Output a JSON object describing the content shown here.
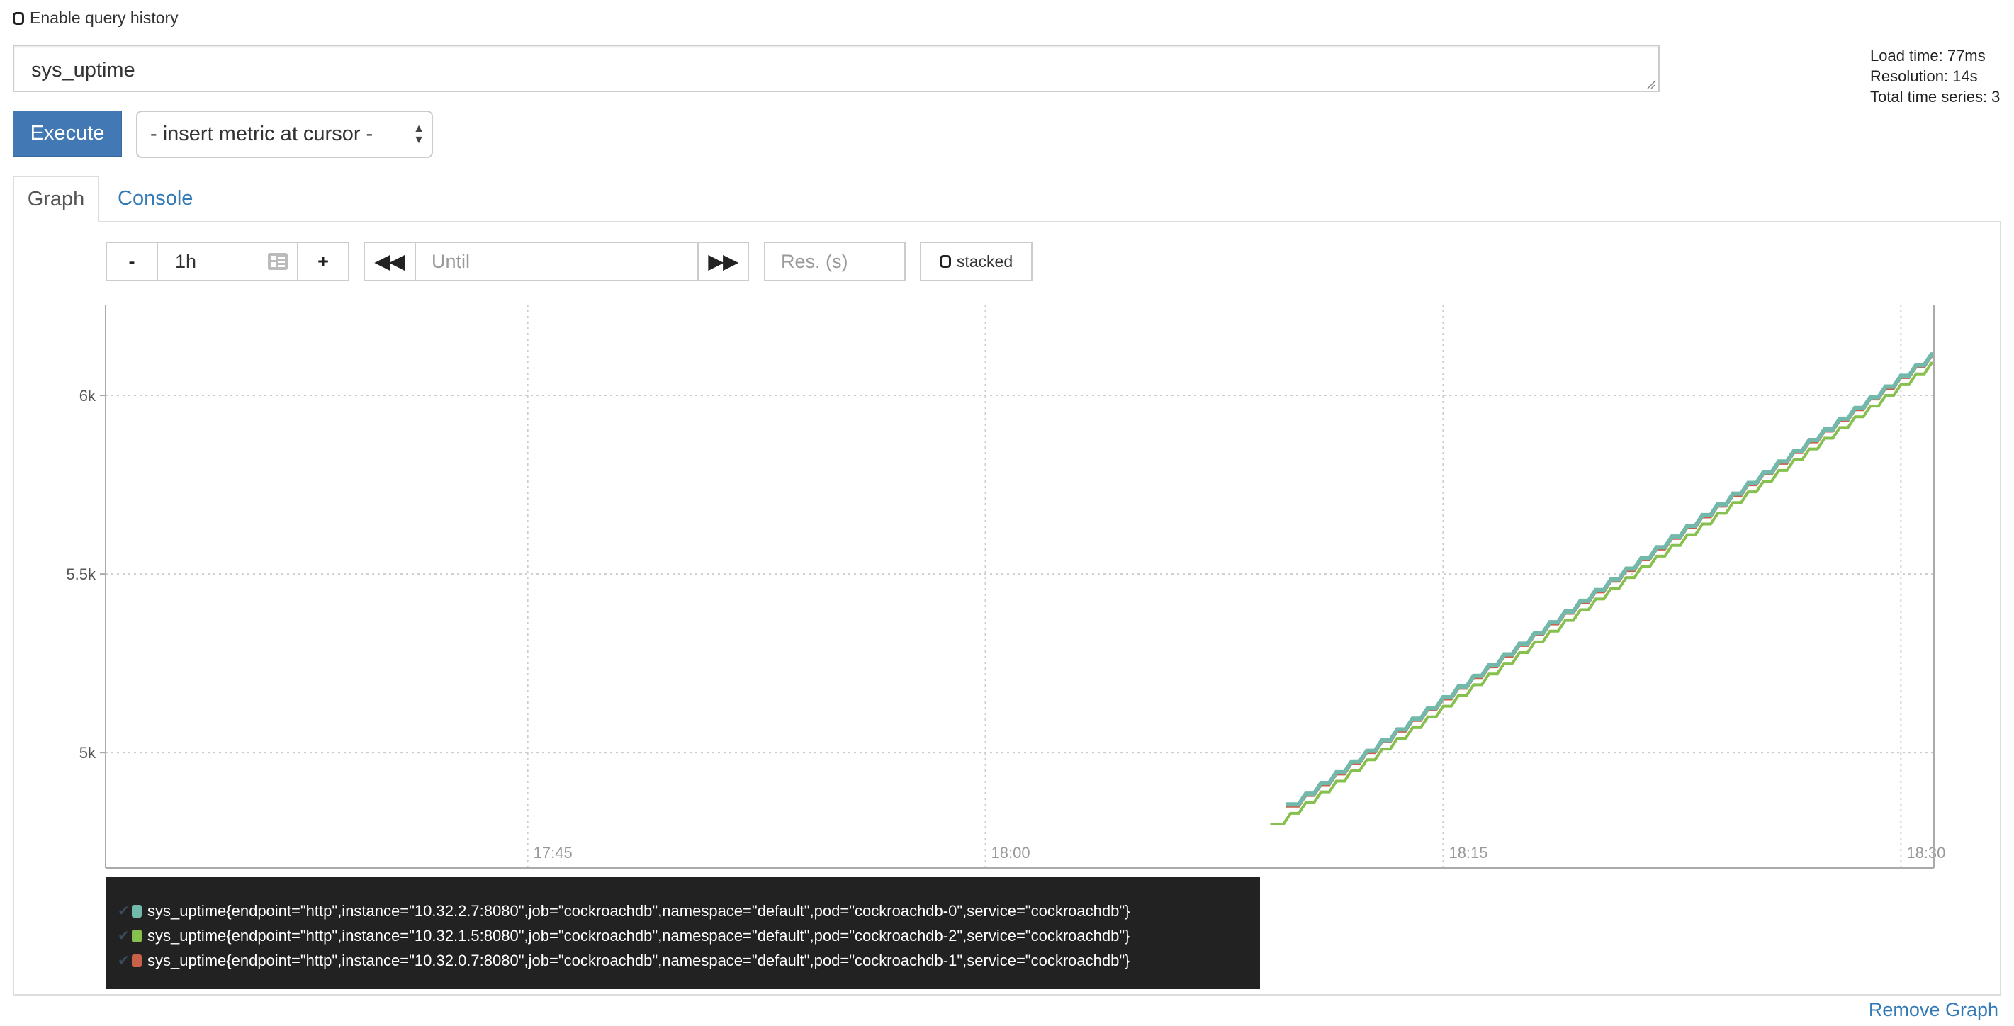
{
  "history": {
    "label": "Enable query history",
    "checked": false
  },
  "query": {
    "value": "sys_uptime"
  },
  "execute_label": "Execute",
  "metric_select": {
    "value": "- insert metric at cursor -"
  },
  "stats": {
    "load_time": "Load time: 77ms",
    "resolution": "Resolution: 14s",
    "total_series": "Total time series: 3"
  },
  "tabs": [
    {
      "label": "Graph",
      "active": true
    },
    {
      "label": "Console",
      "active": false
    }
  ],
  "controls": {
    "minus": "-",
    "range": "1h",
    "plus": "+",
    "until_placeholder": "Until",
    "res_placeholder": "Res. (s)",
    "stacked_label": "stacked",
    "stacked": false
  },
  "remove_graph": "Remove Graph",
  "chart_data": {
    "type": "line",
    "x_ticks": [
      "17:45",
      "18:00",
      "18:15",
      "18:30"
    ],
    "y_ticks": [
      {
        "value": 5000,
        "label": "5k"
      },
      {
        "value": 5500,
        "label": "5.5k"
      },
      {
        "value": 6000,
        "label": "6k"
      }
    ],
    "xlim": [
      "17:31:10",
      "18:31:05"
    ],
    "ylim": [
      4677,
      6254
    ],
    "grid": true,
    "legend_placement": "bottom",
    "x": [
      "18:09:30",
      "18:10:00",
      "18:10:30",
      "18:11:00",
      "18:11:30",
      "18:12:00",
      "18:12:30",
      "18:13:00",
      "18:13:30",
      "18:14:00",
      "18:14:30",
      "18:15:00",
      "18:15:30",
      "18:16:00",
      "18:16:30",
      "18:17:00",
      "18:17:30",
      "18:18:00",
      "18:18:30",
      "18:19:00",
      "18:19:30",
      "18:20:00",
      "18:20:30",
      "18:21:00",
      "18:21:30",
      "18:22:00",
      "18:22:30",
      "18:23:00",
      "18:23:30",
      "18:24:00",
      "18:24:30",
      "18:25:00",
      "18:25:30",
      "18:26:00",
      "18:26:30",
      "18:27:00",
      "18:27:30",
      "18:28:00",
      "18:28:30",
      "18:29:00",
      "18:29:30",
      "18:30:00",
      "18:30:30",
      "18:31:00"
    ],
    "series": [
      {
        "name": "sys_uptime{endpoint=\"http\",instance=\"10.32.2.7:8080\",job=\"cockroachdb\",namespace=\"default\",pod=\"cockroachdb-0\",service=\"cockroachdb\"}",
        "color": "#73b9ab",
        "values": [
          null,
          4855,
          4885,
          4915,
          4945,
          4975,
          5005,
          5035,
          5065,
          5095,
          5125,
          5155,
          5185,
          5215,
          5245,
          5275,
          5305,
          5335,
          5365,
          5395,
          5425,
          5455,
          5485,
          5515,
          5545,
          5575,
          5605,
          5635,
          5665,
          5695,
          5725,
          5755,
          5785,
          5815,
          5845,
          5875,
          5905,
          5935,
          5965,
          5995,
          6025,
          6055,
          6085,
          6115
        ]
      },
      {
        "name": "sys_uptime{endpoint=\"http\",instance=\"10.32.1.5:8080\",job=\"cockroachdb\",namespace=\"default\",pod=\"cockroachdb-2\",service=\"cockroachdb\"}",
        "color": "#86c04f",
        "values": [
          4800,
          4830,
          4860,
          4890,
          4920,
          4950,
          4980,
          5010,
          5040,
          5070,
          5100,
          5130,
          5160,
          5190,
          5220,
          5250,
          5280,
          5310,
          5340,
          5370,
          5400,
          5430,
          5460,
          5490,
          5520,
          5550,
          5580,
          5610,
          5640,
          5670,
          5700,
          5730,
          5760,
          5790,
          5820,
          5850,
          5880,
          5910,
          5940,
          5970,
          6000,
          6030,
          6060,
          6090
        ]
      },
      {
        "name": "sys_uptime{endpoint=\"http\",instance=\"10.32.0.7:8080\",job=\"cockroachdb\",namespace=\"default\",pod=\"cockroachdb-1\",service=\"cockroachdb\"}",
        "color": "#c8604a",
        "values": [
          null,
          4850,
          4880,
          4910,
          4940,
          4970,
          5000,
          5030,
          5060,
          5090,
          5120,
          5150,
          5180,
          5210,
          5240,
          5270,
          5300,
          5330,
          5360,
          5390,
          5420,
          5450,
          5480,
          5510,
          5540,
          5570,
          5600,
          5630,
          5660,
          5690,
          5720,
          5750,
          5780,
          5810,
          5840,
          5870,
          5900,
          5930,
          5960,
          5990,
          6020,
          6050,
          6080,
          6110
        ]
      }
    ]
  }
}
